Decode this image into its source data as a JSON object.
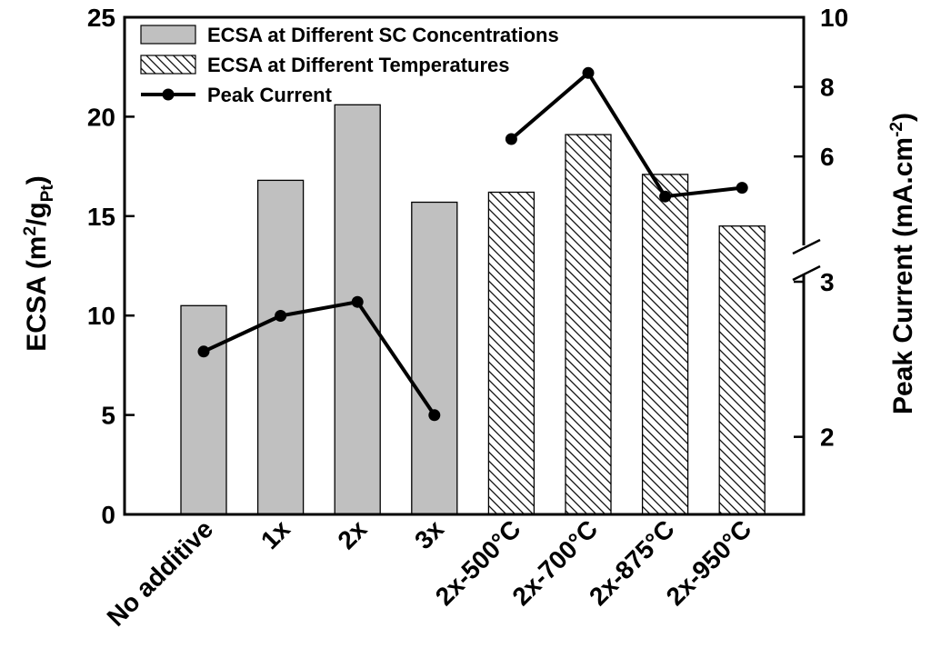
{
  "chart_data": {
    "type": "bar",
    "categories": [
      "No additive",
      "1x",
      "2x",
      "3x",
      "2x-500°C",
      "2x-700°C",
      "2x-875°C",
      "2x-950°C"
    ],
    "series": [
      {
        "name": "ECSA at Different SC Concentrations",
        "kind": "bar",
        "fill": "solid-gray",
        "axis": "left",
        "values": [
          10.5,
          16.8,
          20.6,
          15.7,
          null,
          null,
          null,
          null
        ]
      },
      {
        "name": "ECSA at Different Temperatures",
        "kind": "bar",
        "fill": "diagonal-hatch",
        "axis": "left",
        "values": [
          null,
          null,
          null,
          null,
          16.2,
          19.1,
          17.1,
          14.5
        ]
      },
      {
        "name": "Peak Current",
        "kind": "line",
        "marker": "circle",
        "axis": "right",
        "values": [
          2.55,
          2.78,
          2.87,
          2.14,
          6.5,
          8.4,
          4.85,
          5.1
        ]
      }
    ],
    "y_left": {
      "label_main": "ECSA (m",
      "label_sup": "2",
      "label_mid": "/g",
      "label_sub": "Pt",
      "label_end": ")",
      "ticks": [
        "0",
        "5",
        "10",
        "15",
        "20",
        "25"
      ],
      "ylim": [
        0,
        25
      ]
    },
    "y_right": {
      "label_main": "Peak Current (mA.cm",
      "label_sup": "-2",
      "label_end": ")",
      "axis_break": true,
      "lower_segment": {
        "range": [
          1.5,
          3.0
        ],
        "ticks": [
          "2",
          "3"
        ]
      },
      "upper_segment": {
        "range": [
          3.0,
          10.0
        ],
        "ticks": [
          "6",
          "8",
          "10"
        ]
      }
    },
    "legend": {
      "position": "top-left"
    },
    "grid": false,
    "colors": {
      "bar_gray": "#c0c0c0",
      "line": "#000000",
      "frame": "#000000"
    }
  }
}
